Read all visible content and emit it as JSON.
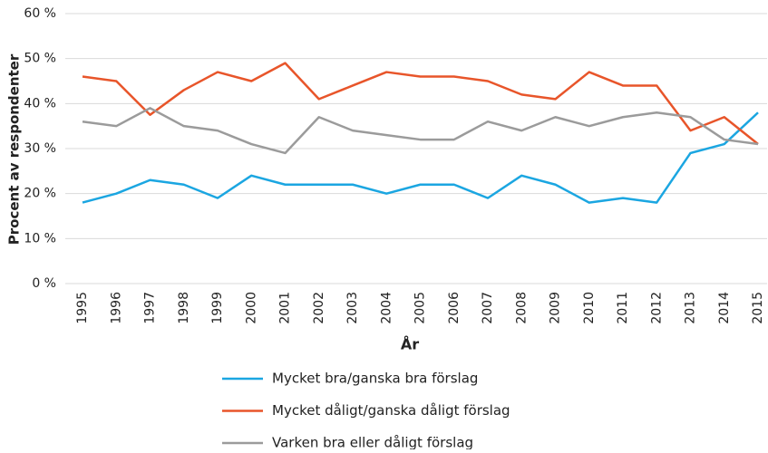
{
  "chart_data": {
    "type": "line",
    "x_label": "År",
    "y_label": "Procent av respondenter",
    "categories": [
      "1995",
      "1996",
      "1997",
      "1998",
      "1999",
      "2000",
      "2001",
      "2002",
      "2003",
      "2004",
      "2005",
      "2006",
      "2007",
      "2008",
      "2009",
      "2010",
      "2011",
      "2012",
      "2013",
      "2014",
      "2015"
    ],
    "series": [
      {
        "name": "Mycket bra/ganska bra förslag",
        "color": "#1ba6e1",
        "values": [
          18,
          20,
          23,
          22,
          19,
          24,
          22,
          22,
          22,
          20,
          22,
          22,
          19,
          24,
          22,
          18,
          19,
          18,
          29,
          31,
          38
        ]
      },
      {
        "name": "Mycket dåligt/ganska dåligt förslag",
        "color": "#e8552a",
        "values": [
          46,
          45,
          37.5,
          43,
          47,
          45,
          49,
          41,
          44,
          47,
          46,
          46,
          45,
          42,
          41,
          47,
          44,
          44,
          34,
          37,
          31
        ]
      },
      {
        "name": "Varken bra eller dåligt förslag",
        "color": "#9b9b9b",
        "values": [
          36,
          35,
          39,
          35,
          34,
          31,
          29,
          37,
          34,
          33,
          32,
          32,
          36,
          34,
          37,
          35,
          37,
          38,
          37,
          32,
          31
        ]
      }
    ],
    "ylim": [
      0,
      60
    ],
    "yticks": [
      {
        "value": 0,
        "label": "0 %"
      },
      {
        "value": 10,
        "label": "10 %"
      },
      {
        "value": 20,
        "label": "20 %"
      },
      {
        "value": 30,
        "label": "30 %"
      },
      {
        "value": 40,
        "label": "40 %"
      },
      {
        "value": 50,
        "label": "50 %"
      },
      {
        "value": 60,
        "label": "60 %"
      }
    ],
    "grid": true,
    "legend": "bottom"
  }
}
